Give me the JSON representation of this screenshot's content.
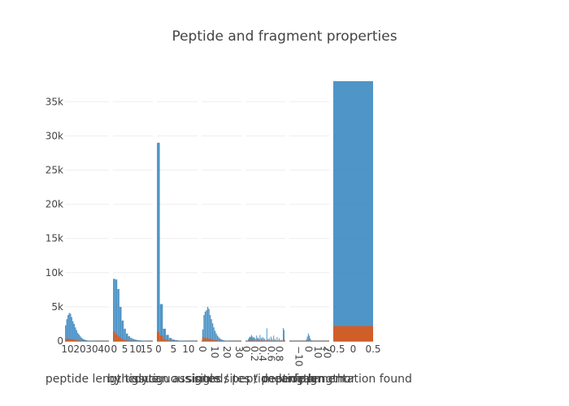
{
  "chart_data": {
    "type": "bar",
    "title": "Peptide and fragment properties",
    "y_axis": {
      "range": [
        0,
        38000
      ],
      "ticks": [
        0,
        5000,
        10000,
        15000,
        20000,
        25000,
        30000,
        35000
      ],
      "tick_labels": [
        "0",
        "5k",
        "10k",
        "15k",
        "20k",
        "25k",
        "30k",
        "35k"
      ]
    },
    "series_colors": {
      "blue": "#3182bd",
      "orange": "#e6550d"
    },
    "panels": [
      {
        "xlabel": "peptide length",
        "xrange": [
          8,
          44
        ],
        "xticks": [
          10,
          20,
          30,
          40
        ],
        "xtick_labels": [
          "10",
          "20",
          "30",
          "40"
        ],
        "bins": [
          {
            "x": 8.5,
            "blue": 2300,
            "orange": 300
          },
          {
            "x": 9.5,
            "blue": 3200,
            "orange": 350
          },
          {
            "x": 10.5,
            "blue": 3800,
            "orange": 350
          },
          {
            "x": 11.5,
            "blue": 4100,
            "orange": 330
          },
          {
            "x": 12.5,
            "blue": 4000,
            "orange": 310
          },
          {
            "x": 13.5,
            "blue": 3500,
            "orange": 280
          },
          {
            "x": 14.5,
            "blue": 2900,
            "orange": 240
          },
          {
            "x": 15.5,
            "blue": 2500,
            "orange": 200
          },
          {
            "x": 16.5,
            "blue": 2000,
            "orange": 160
          },
          {
            "x": 17.5,
            "blue": 1600,
            "orange": 130
          },
          {
            "x": 18.5,
            "blue": 1200,
            "orange": 100
          },
          {
            "x": 19.5,
            "blue": 950,
            "orange": 80
          },
          {
            "x": 20.5,
            "blue": 700,
            "orange": 60
          },
          {
            "x": 21.5,
            "blue": 500,
            "orange": 40
          },
          {
            "x": 22.5,
            "blue": 350,
            "orange": 30
          },
          {
            "x": 23.5,
            "blue": 250,
            "orange": 20
          },
          {
            "x": 24.5,
            "blue": 170,
            "orange": 15
          },
          {
            "x": 25.5,
            "blue": 120,
            "orange": 10
          },
          {
            "x": 26.5,
            "blue": 90,
            "orange": 8
          },
          {
            "x": 27.5,
            "blue": 60,
            "orange": 5
          },
          {
            "x": 28.5,
            "blue": 45,
            "orange": 4
          },
          {
            "x": 29.5,
            "blue": 35,
            "orange": 3
          },
          {
            "x": 30.5,
            "blue": 25,
            "orange": 2
          },
          {
            "x": 31.5,
            "blue": 20,
            "orange": 2
          },
          {
            "x": 32.5,
            "blue": 15,
            "orange": 1
          },
          {
            "x": 33.5,
            "blue": 10,
            "orange": 1
          },
          {
            "x": 34.5,
            "blue": 8,
            "orange": 1
          },
          {
            "x": 35.5,
            "blue": 6,
            "orange": 0
          },
          {
            "x": 36.5,
            "blue": 5,
            "orange": 0
          },
          {
            "x": 37.5,
            "blue": 4,
            "orange": 0
          },
          {
            "x": 38.5,
            "blue": 3,
            "orange": 0
          },
          {
            "x": 39.5,
            "blue": 2,
            "orange": 0
          },
          {
            "x": 40.5,
            "blue": 2,
            "orange": 0
          },
          {
            "x": 41.5,
            "blue": 1,
            "orange": 0
          },
          {
            "x": 42.5,
            "blue": 1,
            "orange": 0
          }
        ]
      },
      {
        "xlabel": "by tissue",
        "xrange": [
          -0.5,
          18
        ],
        "xticks": [
          0,
          5,
          10,
          15
        ],
        "xtick_labels": [
          "0",
          "5",
          "10",
          "15"
        ],
        "bins": [
          {
            "x": 0,
            "blue": 9100,
            "orange": 1400
          },
          {
            "x": 1,
            "blue": 9000,
            "orange": 1000
          },
          {
            "x": 2,
            "blue": 7600,
            "orange": 700
          },
          {
            "x": 3,
            "blue": 5000,
            "orange": 450
          },
          {
            "x": 4,
            "blue": 3000,
            "orange": 280
          },
          {
            "x": 5,
            "blue": 1800,
            "orange": 170
          },
          {
            "x": 6,
            "blue": 1100,
            "orange": 100
          },
          {
            "x": 7,
            "blue": 700,
            "orange": 60
          },
          {
            "x": 8,
            "blue": 450,
            "orange": 40
          },
          {
            "x": 9,
            "blue": 300,
            "orange": 25
          },
          {
            "x": 10,
            "blue": 200,
            "orange": 15
          },
          {
            "x": 11,
            "blue": 140,
            "orange": 10
          },
          {
            "x": 12,
            "blue": 100,
            "orange": 8
          },
          {
            "x": 13,
            "blue": 70,
            "orange": 5
          },
          {
            "x": 14,
            "blue": 50,
            "orange": 4
          },
          {
            "x": 15,
            "blue": 30,
            "orange": 3
          },
          {
            "x": 16,
            "blue": 20,
            "orange": 2
          },
          {
            "x": 17,
            "blue": 10,
            "orange": 1
          }
        ]
      },
      {
        "xlabel": "glycan assigned",
        "xrange": [
          -0.5,
          13
        ],
        "xticks": [
          0,
          5,
          10
        ],
        "xtick_labels": [
          "0",
          "5",
          "10"
        ],
        "bins": [
          {
            "x": 0,
            "blue": 29000,
            "orange": 1300
          },
          {
            "x": 1,
            "blue": 5400,
            "orange": 800
          },
          {
            "x": 2,
            "blue": 1800,
            "orange": 300
          },
          {
            "x": 3,
            "blue": 900,
            "orange": 120
          },
          {
            "x": 4,
            "blue": 450,
            "orange": 60
          },
          {
            "x": 5,
            "blue": 220,
            "orange": 30
          },
          {
            "x": 6,
            "blue": 120,
            "orange": 15
          },
          {
            "x": 7,
            "blue": 70,
            "orange": 8
          },
          {
            "x": 8,
            "blue": 40,
            "orange": 5
          },
          {
            "x": 9,
            "blue": 25,
            "orange": 3
          },
          {
            "x": 10,
            "blue": 15,
            "orange": 2
          },
          {
            "x": 11,
            "blue": 10,
            "orange": 1
          },
          {
            "x": 12,
            "blue": 5,
            "orange": 1
          }
        ]
      },
      {
        "xlabel": "contiguous sites / peptide length",
        "xrange": [
          -0.5,
          32
        ],
        "xticks": [
          0,
          10,
          20,
          30
        ],
        "xtick_labels": [
          "0",
          "10",
          "20",
          "30"
        ],
        "bins": [
          {
            "x": 0.5,
            "blue": 1700,
            "orange": 600
          },
          {
            "x": 1.5,
            "blue": 3800,
            "orange": 500
          },
          {
            "x": 2.5,
            "blue": 4300,
            "orange": 450
          },
          {
            "x": 3.5,
            "blue": 4500,
            "orange": 420
          },
          {
            "x": 4.5,
            "blue": 5000,
            "orange": 400
          },
          {
            "x": 5.5,
            "blue": 4700,
            "orange": 380
          },
          {
            "x": 6.5,
            "blue": 3800,
            "orange": 330
          },
          {
            "x": 7.5,
            "blue": 3200,
            "orange": 280
          },
          {
            "x": 8.5,
            "blue": 2600,
            "orange": 230
          },
          {
            "x": 9.5,
            "blue": 2000,
            "orange": 180
          },
          {
            "x": 10.5,
            "blue": 1500,
            "orange": 140
          },
          {
            "x": 11.5,
            "blue": 1100,
            "orange": 100
          },
          {
            "x": 12.5,
            "blue": 800,
            "orange": 70
          },
          {
            "x": 13.5,
            "blue": 550,
            "orange": 50
          },
          {
            "x": 14.5,
            "blue": 380,
            "orange": 35
          },
          {
            "x": 15.5,
            "blue": 260,
            "orange": 25
          },
          {
            "x": 16.5,
            "blue": 180,
            "orange": 18
          },
          {
            "x": 17.5,
            "blue": 120,
            "orange": 12
          },
          {
            "x": 18.5,
            "blue": 80,
            "orange": 8
          },
          {
            "x": 19.5,
            "blue": 55,
            "orange": 5
          },
          {
            "x": 20.5,
            "blue": 40,
            "orange": 4
          },
          {
            "x": 21.5,
            "blue": 30,
            "orange": 3
          },
          {
            "x": 22.5,
            "blue": 20,
            "orange": 2
          },
          {
            "x": 23.5,
            "blue": 15,
            "orange": 1
          },
          {
            "x": 24.5,
            "blue": 10,
            "orange": 1
          },
          {
            "x": 25.5,
            "blue": 8,
            "orange": 1
          },
          {
            "x": 26.5,
            "blue": 6,
            "orange": 0
          },
          {
            "x": 27.5,
            "blue": 4,
            "orange": 0
          },
          {
            "x": 28.5,
            "blue": 3,
            "orange": 0
          },
          {
            "x": 29.5,
            "blue": 2,
            "orange": 0
          },
          {
            "x": 30.5,
            "blue": 1,
            "orange": 0
          }
        ]
      },
      {
        "xlabel": "single sites / peptide length",
        "xrange": [
          -0.02,
          0.95
        ],
        "xticks": [
          0,
          0.2,
          0.4,
          0.6,
          0.8
        ],
        "xtick_labels": [
          "0",
          "0.2",
          "0.4",
          "0.6",
          "0.8"
        ],
        "bins": [
          {
            "x": 0.05,
            "blue": 300,
            "orange": 40
          },
          {
            "x": 0.07,
            "blue": 500,
            "orange": 60
          },
          {
            "x": 0.09,
            "blue": 650,
            "orange": 80
          },
          {
            "x": 0.11,
            "blue": 550,
            "orange": 70
          },
          {
            "x": 0.125,
            "blue": 900,
            "orange": 110
          },
          {
            "x": 0.14,
            "blue": 700,
            "orange": 90
          },
          {
            "x": 0.16,
            "blue": 500,
            "orange": 60
          },
          {
            "x": 0.18,
            "blue": 600,
            "orange": 70
          },
          {
            "x": 0.2,
            "blue": 450,
            "orange": 55
          },
          {
            "x": 0.22,
            "blue": 350,
            "orange": 40
          },
          {
            "x": 0.25,
            "blue": 800,
            "orange": 100
          },
          {
            "x": 0.27,
            "blue": 400,
            "orange": 50
          },
          {
            "x": 0.29,
            "blue": 500,
            "orange": 60
          },
          {
            "x": 0.31,
            "blue": 300,
            "orange": 35
          },
          {
            "x": 0.333,
            "blue": 900,
            "orange": 110
          },
          {
            "x": 0.36,
            "blue": 450,
            "orange": 55
          },
          {
            "x": 0.38,
            "blue": 350,
            "orange": 40
          },
          {
            "x": 0.4,
            "blue": 600,
            "orange": 70
          },
          {
            "x": 0.43,
            "blue": 400,
            "orange": 50
          },
          {
            "x": 0.45,
            "blue": 300,
            "orange": 35
          },
          {
            "x": 0.5,
            "blue": 1850,
            "orange": 200
          },
          {
            "x": 0.53,
            "blue": 300,
            "orange": 35
          },
          {
            "x": 0.56,
            "blue": 400,
            "orange": 45
          },
          {
            "x": 0.6,
            "blue": 650,
            "orange": 80
          },
          {
            "x": 0.63,
            "blue": 350,
            "orange": 40
          },
          {
            "x": 0.667,
            "blue": 800,
            "orange": 100
          },
          {
            "x": 0.7,
            "blue": 300,
            "orange": 35
          },
          {
            "x": 0.75,
            "blue": 600,
            "orange": 70
          },
          {
            "x": 0.8,
            "blue": 400,
            "orange": 45
          },
          {
            "x": 0.85,
            "blue": 200,
            "orange": 25
          },
          {
            "x": 0.9,
            "blue": 1900,
            "orange": 220
          },
          {
            "x": 0.92,
            "blue": 1600,
            "orange": 180
          }
        ]
      },
      {
        "xlabel": "mean ppm error",
        "xrange": [
          -20,
          22
        ],
        "xticks": [
          -10,
          0,
          10,
          20
        ],
        "xtick_labels": [
          "−10",
          "0",
          "10",
          "20"
        ],
        "bins": [
          {
            "x": -3,
            "blue": 60,
            "orange": 5
          },
          {
            "x": -2,
            "blue": 250,
            "orange": 20
          },
          {
            "x": -1,
            "blue": 650,
            "orange": 50
          },
          {
            "x": 0,
            "blue": 1100,
            "orange": 80
          },
          {
            "x": 1,
            "blue": 800,
            "orange": 60
          },
          {
            "x": 2,
            "blue": 400,
            "orange": 30
          },
          {
            "x": 3,
            "blue": 150,
            "orange": 10
          },
          {
            "x": 4,
            "blue": 50,
            "orange": 4
          }
        ]
      },
      {
        "xlabel": "fragmentation found",
        "xrange": [
          -0.5,
          0.5
        ],
        "xticks": [
          -0.5,
          0,
          0.5
        ],
        "xtick_labels": [
          "−0.5",
          "0",
          "0.5"
        ],
        "bins": [
          {
            "x": 0,
            "blue": 38000,
            "orange": 2200
          }
        ]
      }
    ]
  }
}
